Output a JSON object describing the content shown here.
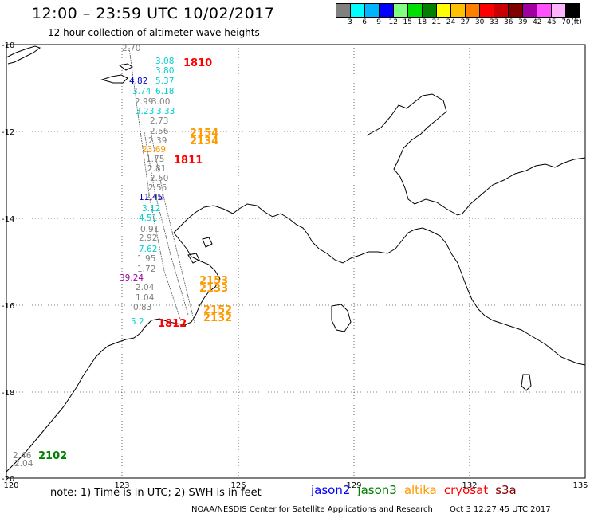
{
  "header": {
    "title": "12:00 – 23:59 UTC 10/02/2017",
    "subtitle": "12 hour collection of altimeter wave heights"
  },
  "color_scale": {
    "swatches": [
      "#808080",
      "#00ffff",
      "#00b4ff",
      "#0000ff",
      "#80ff80",
      "#00e000",
      "#008000",
      "#ffff00",
      "#ffc000",
      "#ff8000",
      "#ff0000",
      "#c80000",
      "#800000",
      "#a000a0",
      "#ff50ff",
      "#ffb4ff",
      "#000000"
    ],
    "labels": [
      "3",
      "6",
      "9",
      "12",
      "15",
      "18",
      "21",
      "24",
      "27",
      "30",
      "33",
      "36",
      "39",
      "42",
      "45",
      "70",
      "(ft)"
    ]
  },
  "axes": {
    "lon_labels": [
      "120",
      "123",
      "126",
      "129",
      "132",
      "135"
    ],
    "lat_labels": [
      "-10",
      "-12",
      "-14",
      "-16",
      "-18",
      "-20"
    ]
  },
  "passes": [
    {
      "time": "1810",
      "color": "#ff0000"
    },
    {
      "time": "1811",
      "color": "#ff0000"
    },
    {
      "time": "1812",
      "color": "#ff0000"
    },
    {
      "time": "2154",
      "color": "#ff9900"
    },
    {
      "time": "2134",
      "color": "#ff9900"
    },
    {
      "time": "2153",
      "color": "#ff9900"
    },
    {
      "time": "2133",
      "color": "#ff9900"
    },
    {
      "time": "2152",
      "color": "#ff9900"
    },
    {
      "time": "2132",
      "color": "#ff9900"
    },
    {
      "time": "2102",
      "color": "#008000"
    }
  ],
  "wave_labels": [
    {
      "text": "2.70",
      "color": "#808080"
    },
    {
      "text": "3.08",
      "color": "#00d0d0"
    },
    {
      "text": "3.80",
      "color": "#00d0d0"
    },
    {
      "text": "5.37",
      "color": "#00d0d0"
    },
    {
      "text": "4.82",
      "color": "#0000cc"
    },
    {
      "text": "6.18",
      "color": "#00d0d0"
    },
    {
      "text": "3.74",
      "color": "#00d0d0"
    },
    {
      "text": "2.99",
      "color": "#808080"
    },
    {
      "text": "3.00",
      "color": "#808080"
    },
    {
      "text": "3.33",
      "color": "#00d0d0"
    },
    {
      "text": "3.23",
      "color": "#00d0d0"
    },
    {
      "text": "2.73",
      "color": "#808080"
    },
    {
      "text": "2.56",
      "color": "#808080"
    },
    {
      "text": "2.39",
      "color": "#808080"
    },
    {
      "text": "23.69",
      "color": "#ff9900"
    },
    {
      "text": "1.75",
      "color": "#808080"
    },
    {
      "text": "2.81",
      "color": "#808080"
    },
    {
      "text": "2.50",
      "color": "#808080"
    },
    {
      "text": "2.55",
      "color": "#808080"
    },
    {
      "text": "2.40",
      "color": "#808080"
    },
    {
      "text": "11.45",
      "color": "#0000cc"
    },
    {
      "text": "3.12",
      "color": "#00d0d0"
    },
    {
      "text": "4.51",
      "color": "#00d0d0"
    },
    {
      "text": "0.91",
      "color": "#808080"
    },
    {
      "text": "2.92",
      "color": "#808080"
    },
    {
      "text": "7.62",
      "color": "#00d0d0"
    },
    {
      "text": "1.95",
      "color": "#808080"
    },
    {
      "text": "1.72",
      "color": "#808080"
    },
    {
      "text": "39.24",
      "color": "#a000a0"
    },
    {
      "text": "2.04",
      "color": "#808080"
    },
    {
      "text": "1.04",
      "color": "#808080"
    },
    {
      "text": "0.83",
      "color": "#808080"
    },
    {
      "text": "5.2",
      "color": "#00d0d0"
    },
    {
      "text": "2.46",
      "color": "#808080"
    },
    {
      "text": "2.04",
      "color": "#808080"
    }
  ],
  "footer": {
    "note": "note: 1) Time is in UTC; 2) SWH is in feet",
    "satellites": [
      {
        "name": "jason2",
        "color": "#0000ff"
      },
      {
        "name": "jason3",
        "color": "#008000"
      },
      {
        "name": "altika",
        "color": "#ff9900"
      },
      {
        "name": "cryosat",
        "color": "#ff0000"
      },
      {
        "name": "s3a",
        "color": "#800000"
      }
    ],
    "credit": "NOAA/NESDIS Center for Satellite Applications and Research",
    "timestamp": "Oct  3 12:27:45 UTC 2017"
  }
}
